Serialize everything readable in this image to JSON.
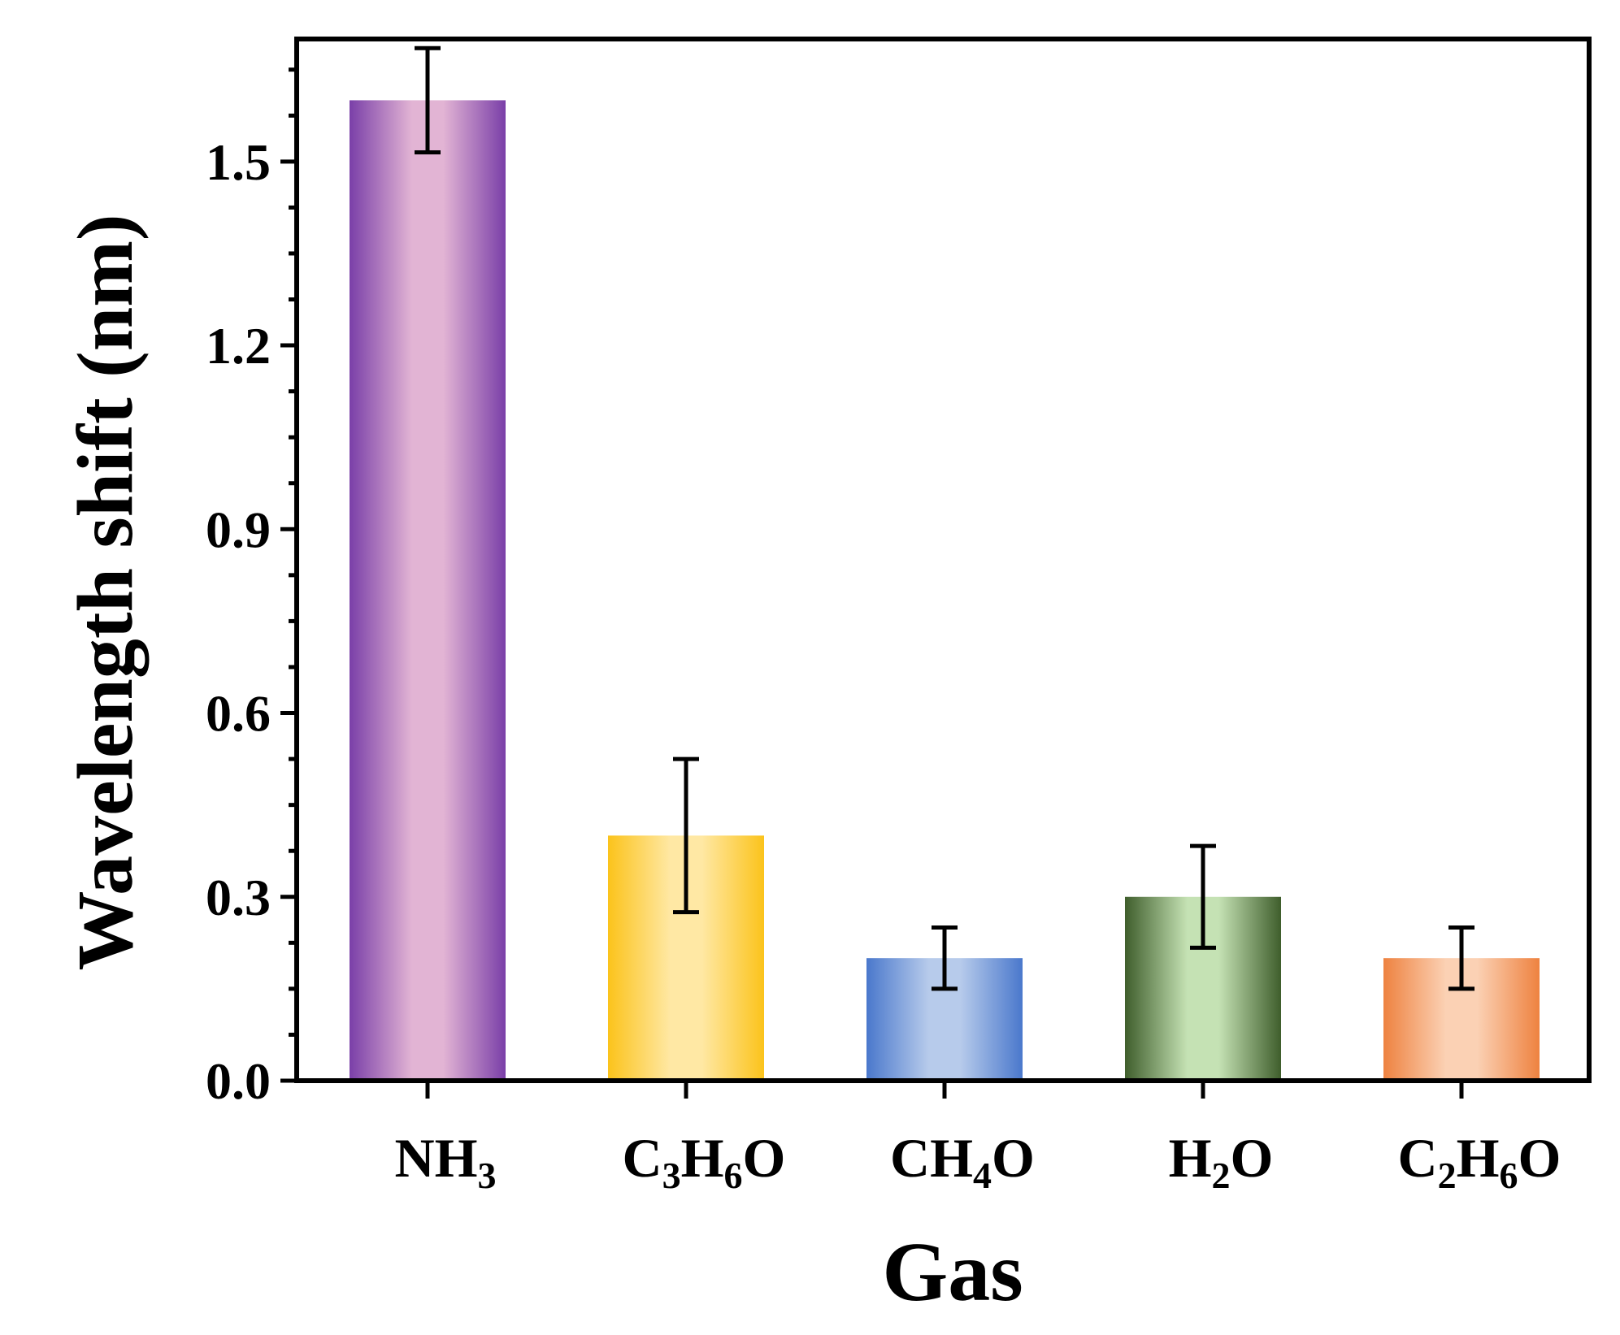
{
  "chart_data": {
    "type": "bar",
    "xlabel": "Gas",
    "ylabel": "Wavelength shift (nm)",
    "ylim": [
      0,
      1.7
    ],
    "yticks": [
      0.0,
      0.3,
      0.6,
      0.9,
      1.2,
      1.5
    ],
    "ytick_labels": [
      "0.0",
      "0.3",
      "0.6",
      "0.9",
      "1.2",
      "1.5"
    ],
    "minor_ytick_step": 0.075,
    "grid": false,
    "categories": [
      {
        "label": "NH3",
        "parts": [
          {
            "t": "NH"
          },
          {
            "t": "3",
            "sub": true
          }
        ]
      },
      {
        "label": "C3H6O",
        "parts": [
          {
            "t": "C"
          },
          {
            "t": "3",
            "sub": true
          },
          {
            "t": "H"
          },
          {
            "t": "6",
            "sub": true
          },
          {
            "t": "O"
          }
        ]
      },
      {
        "label": "CH4O",
        "parts": [
          {
            "t": "CH"
          },
          {
            "t": "4",
            "sub": true
          },
          {
            "t": "O"
          }
        ]
      },
      {
        "label": "H2O",
        "parts": [
          {
            "t": "H"
          },
          {
            "t": "2",
            "sub": true
          },
          {
            "t": "O"
          }
        ]
      },
      {
        "label": "C2H6O",
        "parts": [
          {
            "t": "C"
          },
          {
            "t": "2",
            "sub": true
          },
          {
            "t": "H"
          },
          {
            "t": "6",
            "sub": true
          },
          {
            "t": "O"
          }
        ]
      }
    ],
    "values": [
      1.6,
      0.4,
      0.2,
      0.3,
      0.2
    ],
    "errors": [
      0.085,
      0.125,
      0.05,
      0.083,
      0.05
    ],
    "colors": [
      {
        "edge": "#7a3fa8",
        "center": "#e2b4d4"
      },
      {
        "edge": "#fbc31b",
        "center": "#ffe8a4"
      },
      {
        "edge": "#4a78cc",
        "center": "#b7cbeb"
      },
      {
        "edge": "#3f5e2c",
        "center": "#c5e2b4"
      },
      {
        "edge": "#ee8240",
        "center": "#fbd1b4"
      }
    ]
  }
}
